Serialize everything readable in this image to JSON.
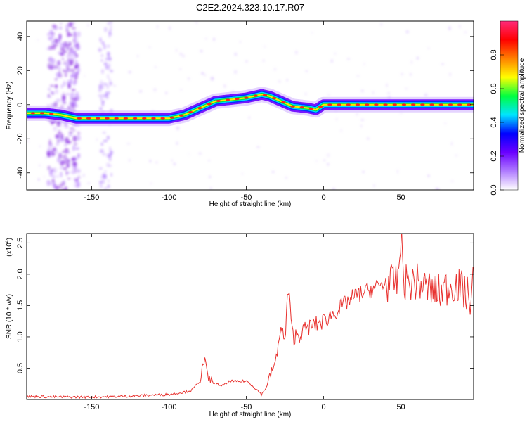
{
  "figure_title": "C2E2.2024.323.10.17.R07",
  "colorbar": {
    "label": "Normalized spectral amplitude",
    "ticks": [
      "0.0",
      "0.2",
      "0.4",
      "0.6",
      "0.8"
    ],
    "tick_values": [
      0.0,
      0.2,
      0.4,
      0.6,
      0.8
    ],
    "range": [
      0,
      1
    ],
    "colors": [
      "#ffffff",
      "#b07cff",
      "#6a00ff",
      "#0000ff",
      "#00e5ff",
      "#00ff40",
      "#ffff00",
      "#ff8000",
      "#ff0000",
      "#ff2a7a"
    ]
  },
  "chart_data": [
    {
      "type": "heatmap",
      "title": "",
      "xlabel": "Height of straight line (km)",
      "ylabel": "Frequency (Hz)",
      "xlim": [
        -192,
        97
      ],
      "ylim": [
        -50,
        49
      ],
      "xticks": [
        -150,
        -100,
        -50,
        0,
        50
      ],
      "yticks": [
        -40,
        -20,
        0,
        20,
        40
      ],
      "ridge": {
        "x": [
          -192,
          -180,
          -170,
          -160,
          -150,
          -140,
          -120,
          -100,
          -90,
          -80,
          -70,
          -60,
          -50,
          -40,
          -35,
          -30,
          -20,
          -10,
          -5,
          0,
          20,
          50,
          97
        ],
        "y": [
          -5,
          -5,
          -6,
          -8,
          -8,
          -8,
          -8,
          -8,
          -6,
          -2,
          2,
          3,
          4,
          6,
          5,
          3,
          -1,
          -2,
          -3,
          0,
          0,
          0,
          0
        ]
      }
    },
    {
      "type": "line",
      "title": "",
      "xlabel": "Height of straight line (km)",
      "ylabel": "SNR (10 * v/v)",
      "y_multiplier": "(x10",
      "y_multiplier_exp": "4",
      "xlim": [
        -192,
        97
      ],
      "ylim": [
        0,
        2.65
      ],
      "xticks": [
        -150,
        -100,
        -50,
        0,
        50
      ],
      "yticks": [
        "0.5",
        "1.0",
        "1.5",
        "2.0",
        "2.5"
      ],
      "ytick_values": [
        0.5,
        1.0,
        1.5,
        2.0,
        2.5
      ],
      "color": "#e8322f",
      "series": [
        {
          "x": [
            -192,
            -170,
            -150,
            -130,
            -110,
            -100,
            -95,
            -90,
            -85,
            -80,
            -77,
            -75,
            -70,
            -65,
            -60,
            -55,
            -50,
            -45,
            -40,
            -37,
            -35,
            -32,
            -30,
            -28,
            -25,
            -23,
            -20,
            -15,
            -10,
            -5,
            0,
            5,
            10,
            15,
            20,
            25,
            30,
            35,
            40,
            45,
            48,
            50,
            52,
            55,
            60,
            65,
            70,
            75,
            80,
            85,
            90,
            95,
            97
          ],
          "y": [
            0.05,
            0.04,
            0.04,
            0.05,
            0.07,
            0.08,
            0.1,
            0.12,
            0.15,
            0.3,
            0.65,
            0.35,
            0.25,
            0.22,
            0.3,
            0.28,
            0.3,
            0.2,
            0.08,
            0.2,
            0.35,
            0.55,
            0.7,
            1.2,
            0.9,
            1.8,
            1.0,
            1.05,
            1.15,
            1.2,
            1.25,
            1.35,
            1.45,
            1.55,
            1.65,
            1.7,
            1.75,
            1.8,
            1.85,
            1.85,
            1.9,
            2.6,
            1.9,
            1.85,
            1.88,
            1.8,
            1.75,
            1.7,
            1.8,
            1.85,
            1.75,
            1.6,
            1.9
          ]
        }
      ]
    }
  ]
}
